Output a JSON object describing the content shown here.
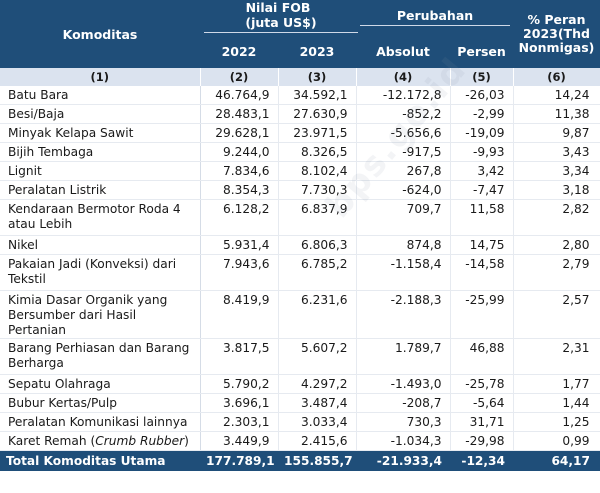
{
  "header": {
    "komoditas": "Komoditas",
    "nilai_fob_line1": "Nilai FOB",
    "nilai_fob_line2": "(juta US$)",
    "perubahan": "Perubahan",
    "peran_line1": "% Peran",
    "peran_line2": "2023(Thd",
    "peran_line3": "Nonmigas)",
    "y2022": "2022",
    "y2023": "2023",
    "absolut": "Absolut",
    "persen": "Persen",
    "col_numbers": [
      "(1)",
      "(2)",
      "(3)",
      "(4)",
      "(5)",
      "(6)"
    ]
  },
  "rows": [
    {
      "name": "Batu Bara",
      "v2022": "46.764,9",
      "v2023": "34.592,1",
      "abs": "-12.172,8",
      "pct": "-26,03",
      "share": "14,24"
    },
    {
      "name": "Besi/Baja",
      "v2022": "28.483,1",
      "v2023": "27.630,9",
      "abs": "-852,2",
      "pct": "-2,99",
      "share": "11,38"
    },
    {
      "name": "Minyak Kelapa Sawit",
      "v2022": "29.628,1",
      "v2023": "23.971,5",
      "abs": "-5.656,6",
      "pct": "-19,09",
      "share": "9,87"
    },
    {
      "name": "Bijih Tembaga",
      "v2022": "9.244,0",
      "v2023": "8.326,5",
      "abs": "-917,5",
      "pct": "-9,93",
      "share": "3,43"
    },
    {
      "name": "Lignit",
      "v2022": "7.834,6",
      "v2023": "8.102,4",
      "abs": "267,8",
      "pct": "3,42",
      "share": "3,34"
    },
    {
      "name": "Peralatan Listrik",
      "v2022": "8.354,3",
      "v2023": "7.730,3",
      "abs": "-624,0",
      "pct": "-7,47",
      "share": "3,18"
    },
    {
      "name": "Kendaraan Bermotor Roda 4 atau Lebih",
      "v2022": "6.128,2",
      "v2023": "6.837,9",
      "abs": "709,7",
      "pct": "11,58",
      "share": "2,82"
    },
    {
      "name": "Nikel",
      "v2022": "5.931,4",
      "v2023": "6.806,3",
      "abs": "874,8",
      "pct": "14,75",
      "share": "2,80"
    },
    {
      "name": "Pakaian Jadi (Konveksi) dari Tekstil",
      "v2022": "7.943,6",
      "v2023": "6.785,2",
      "abs": "-1.158,4",
      "pct": "-14,58",
      "share": "2,79"
    },
    {
      "name": "Kimia Dasar Organik yang Bersumber dari Hasil Pertanian",
      "v2022": "8.419,9",
      "v2023": "6.231,6",
      "abs": "-2.188,3",
      "pct": "-25,99",
      "share": "2,57"
    },
    {
      "name": "Barang Perhiasan dan Barang Berharga",
      "v2022": "3.817,5",
      "v2023": "5.607,2",
      "abs": "1.789,7",
      "pct": "46,88",
      "share": "2,31"
    },
    {
      "name": "Sepatu Olahraga",
      "v2022": "5.790,2",
      "v2023": "4.297,2",
      "abs": "-1.493,0",
      "pct": "-25,78",
      "share": "1,77"
    },
    {
      "name": "Bubur Kertas/Pulp",
      "v2022": "3.696,1",
      "v2023": "3.487,4",
      "abs": "-208,7",
      "pct": "-5,64",
      "share": "1,44"
    },
    {
      "name": "Peralatan Komunikasi lainnya",
      "v2022": "2.303,1",
      "v2023": "3.033,4",
      "abs": "730,3",
      "pct": "31,71",
      "share": "1,25"
    },
    {
      "name_prefix": "Karet Remah (",
      "name_italic": "Crumb Rubber",
      "name_suffix": ")",
      "v2022": "3.449,9",
      "v2023": "2.415,6",
      "abs": "-1.034,3",
      "pct": "-29,98",
      "share": "0,99"
    }
  ],
  "total": {
    "name": "Total Komoditas Utama",
    "v2022": "177.789,1",
    "v2023": "155.855,7",
    "abs": "-21.933,4",
    "pct": "-12,34",
    "share": "64,17"
  },
  "watermark": "bps.go.id",
  "colors": {
    "header_bg": "#1f4e79",
    "subheader_bg": "#dbe3ef",
    "row_border": "#e6eaf0"
  }
}
